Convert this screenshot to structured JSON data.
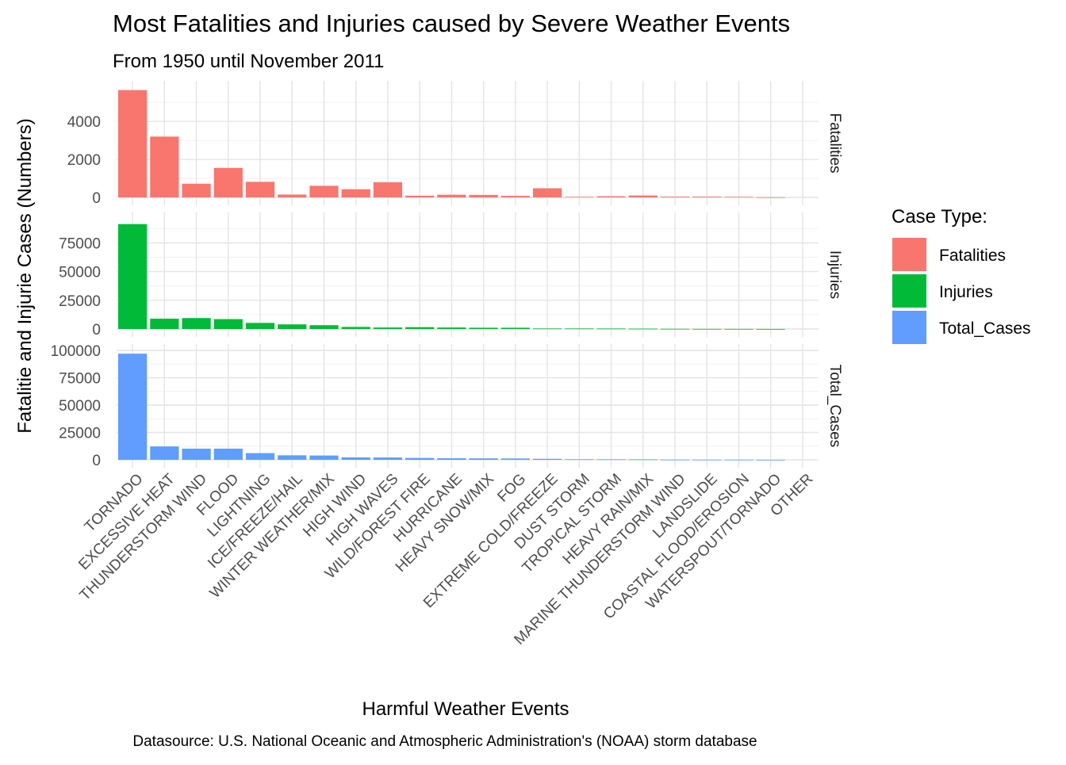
{
  "chart_data": {
    "type": "bar",
    "title": "Most Fatalities and Injuries caused by Severe Weather Events",
    "subtitle": "From 1950 until November 2011",
    "xlabel": "Harmful Weather Events",
    "ylabel": "Fatalitie and Injurie Cases (Numbers)",
    "caption": "Datasource: U.S. National Oceanic and Atmospheric Administration's (NOAA) storm database",
    "grid": true,
    "legend": {
      "title": "Case Type:",
      "position": "right",
      "entries": [
        "Fatalities",
        "Injuries",
        "Total_Cases"
      ]
    },
    "categories": [
      "TORNADO",
      "EXCESSIVE HEAT",
      "THUNDERSTORM WIND",
      "FLOOD",
      "LIGHTNING",
      "ICE/FREEZE/HAIL",
      "WINTER WEATHER/MIX",
      "HIGH WIND",
      "HIGH WAVES",
      "WILD/FOREST FIRE",
      "HURRICANE",
      "HEAVY SNOW/MIX",
      "FOG",
      "EXTREME COLD/FREEZE",
      "DUST STORM",
      "TROPICAL STORM",
      "HEAVY RAIN/MIX",
      "MARINE THUNDERSTORM WIND",
      "LANDSLIDE",
      "COASTAL FLOOD/EROSION",
      "WATERSPOUT/TORNADO",
      "OTHER"
    ],
    "series": [
      {
        "name": "Fatalities",
        "color": "#F8766D",
        "ylim": [
          0,
          5800
        ],
        "yticks": [
          0,
          2000,
          4000
        ],
        "values": [
          5650,
          3200,
          720,
          1550,
          820,
          150,
          610,
          430,
          800,
          90,
          140,
          130,
          80,
          480,
          30,
          60,
          100,
          40,
          40,
          30,
          10,
          0
        ]
      },
      {
        "name": "Injuries",
        "color": "#00BA38",
        "ylim": [
          0,
          96000
        ],
        "yticks": [
          0,
          25000,
          50000,
          75000
        ],
        "values": [
          91400,
          9000,
          9500,
          8600,
          5300,
          4000,
          3300,
          1800,
          1300,
          1600,
          1300,
          1100,
          1100,
          450,
          450,
          400,
          300,
          150,
          100,
          80,
          30,
          0
        ]
      },
      {
        "name": "Total_Cases",
        "color": "#619CFF",
        "ylim": [
          0,
          100000
        ],
        "yticks": [
          0,
          25000,
          50000,
          75000,
          100000
        ],
        "values": [
          97000,
          12200,
          10200,
          10200,
          6100,
          4100,
          3900,
          2200,
          2100,
          1700,
          1400,
          1300,
          1200,
          900,
          500,
          460,
          400,
          190,
          140,
          110,
          40,
          0
        ]
      }
    ]
  }
}
